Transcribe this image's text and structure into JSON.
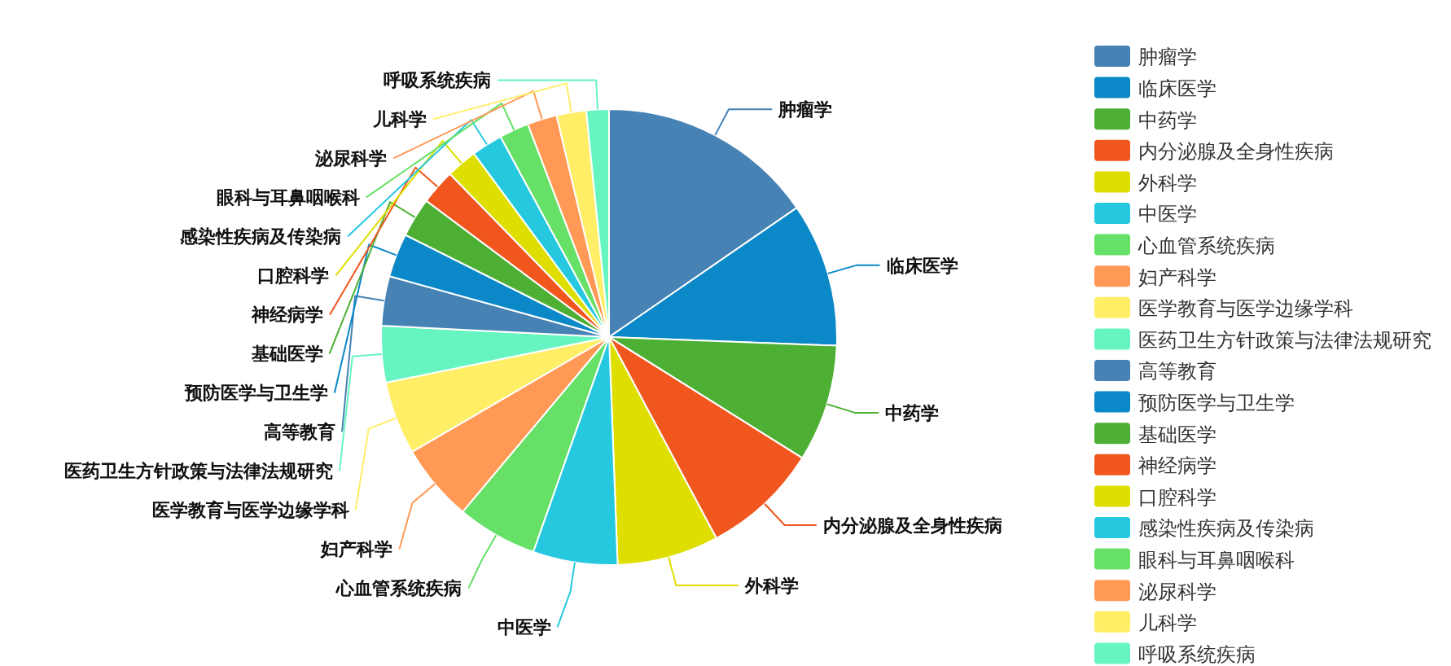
{
  "chart_data": {
    "type": "pie",
    "categories": [
      "肿瘤学",
      "临床医学",
      "中药学",
      "内分泌腺及全身性疾病",
      "外科学",
      "中医学",
      "心血管系统疾病",
      "妇产科学",
      "医学教育与医学边缘学科",
      "医药卫生方针政策与法律法规研究",
      "高等教育",
      "预防医学与卫生学",
      "基础医学",
      "神经病学",
      "口腔科学",
      "感染性疾病及传染病",
      "眼科与耳鼻咽喉科",
      "泌尿科学",
      "儿科学",
      "呼吸系统疾病"
    ],
    "values": [
      15.4,
      10.2,
      8.3,
      8.3,
      7.2,
      6.0,
      5.7,
      5.5,
      5.2,
      4.0,
      3.5,
      3.1,
      2.8,
      2.5,
      2.2,
      2.2,
      2.1,
      2.1,
      2.1,
      1.6
    ],
    "colors": [
      "#4682b4",
      "#0a88c8",
      "#4daf33",
      "#f0561e",
      "#dede00",
      "#26c8e0",
      "#66e066",
      "#ff9955",
      "#ffee66",
      "#66f5c0",
      "#4682b4",
      "#0a88c8",
      "#4daf33",
      "#f0561e",
      "#dede00",
      "#26c8e0",
      "#66e066",
      "#ff9955",
      "#ffee66",
      "#66f5c0"
    ],
    "legend": "right"
  }
}
